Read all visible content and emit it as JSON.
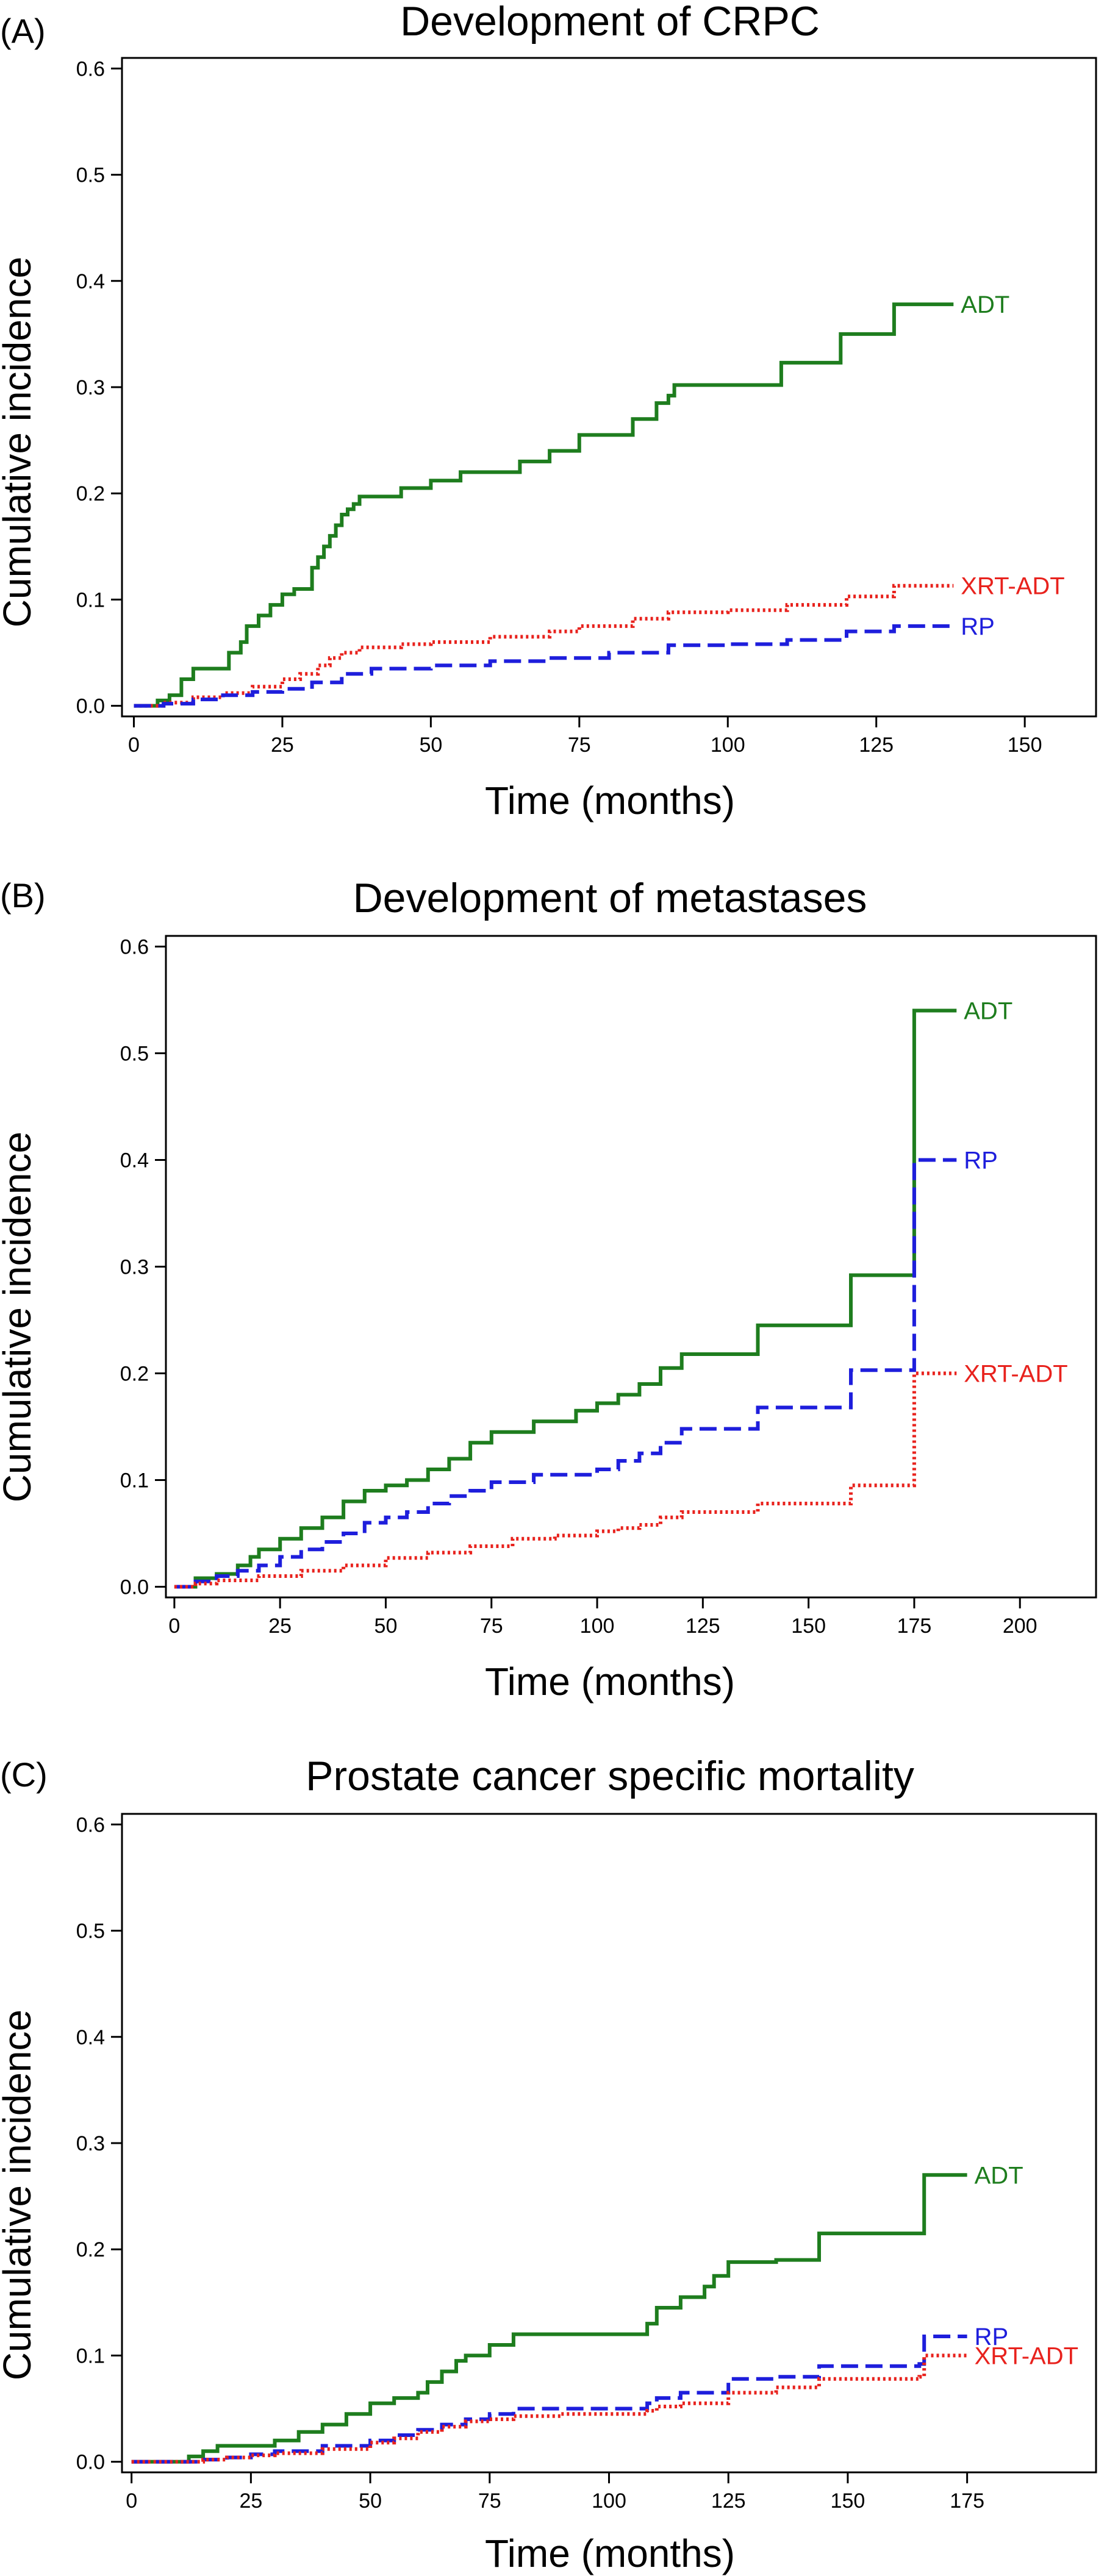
{
  "chart_data": [
    {
      "type": "line",
      "panel": "(A)",
      "title": "Development of CRPC",
      "xlabel": "Time (months)",
      "ylabel": "Cumulative incidence",
      "xlim": [
        -2,
        162
      ],
      "ylim": [
        -0.01,
        0.61
      ],
      "xticks": [
        0,
        25,
        50,
        75,
        100,
        125,
        150
      ],
      "yticks": [
        0.0,
        0.1,
        0.2,
        0.3,
        0.4,
        0.5,
        0.6
      ],
      "grid": false,
      "legend": "inline labels at line ends",
      "series": [
        {
          "name": "ADT",
          "color": "#1e7d1e",
          "linestyle": "solid",
          "label_y": 0.378,
          "x": [
            0,
            4,
            6,
            8,
            10,
            12,
            14,
            16,
            18,
            19,
            21,
            23,
            25,
            27,
            30,
            31,
            32,
            33,
            34,
            35,
            36,
            37,
            38,
            45,
            50,
            55,
            60,
            65,
            70,
            75,
            84,
            88,
            90,
            91,
            109,
            110,
            119,
            120,
            128,
            138
          ],
          "y": [
            0,
            0.005,
            0.01,
            0.025,
            0.035,
            0.035,
            0.035,
            0.05,
            0.06,
            0.075,
            0.085,
            0.095,
            0.105,
            0.11,
            0.13,
            0.14,
            0.15,
            0.16,
            0.17,
            0.18,
            0.185,
            0.19,
            0.197,
            0.205,
            0.212,
            0.22,
            0.22,
            0.23,
            0.24,
            0.255,
            0.27,
            0.285,
            0.292,
            0.302,
            0.323,
            0.323,
            0.35,
            0.35,
            0.378,
            0.378
          ]
        },
        {
          "name": "XRT-ADT",
          "color": "#e8221d",
          "linestyle": "dotted",
          "label_y": 0.113,
          "x": [
            0,
            5,
            10,
            15,
            20,
            25,
            28,
            31,
            33,
            35,
            38,
            45,
            50,
            60,
            70,
            75,
            84,
            90,
            100,
            110,
            120,
            128,
            138
          ],
          "y": [
            0,
            0.003,
            0.008,
            0.012,
            0.018,
            0.025,
            0.03,
            0.038,
            0.045,
            0.05,
            0.055,
            0.058,
            0.06,
            0.065,
            0.07,
            0.075,
            0.082,
            0.088,
            0.09,
            0.095,
            0.103,
            0.113,
            0.113
          ]
        },
        {
          "name": "RP",
          "color": "#1e1edc",
          "linestyle": "dashed",
          "label_y": 0.075,
          "x": [
            0,
            5,
            10,
            15,
            20,
            25,
            30,
            35,
            40,
            50,
            60,
            70,
            80,
            90,
            100,
            110,
            120,
            128,
            138
          ],
          "y": [
            0,
            0.002,
            0.006,
            0.01,
            0.013,
            0.016,
            0.022,
            0.03,
            0.035,
            0.038,
            0.042,
            0.045,
            0.05,
            0.057,
            0.058,
            0.062,
            0.07,
            0.075,
            0.075
          ]
        }
      ]
    },
    {
      "type": "line",
      "panel": "(B)",
      "title": "Development of metastases",
      "xlabel": "Time (months)",
      "ylabel": "Cumulative incidence",
      "xlim": [
        -2,
        218
      ],
      "ylim": [
        -0.01,
        0.61
      ],
      "xticks": [
        0,
        25,
        50,
        75,
        100,
        125,
        150,
        175,
        200
      ],
      "yticks": [
        0.0,
        0.1,
        0.2,
        0.3,
        0.4,
        0.5,
        0.6
      ],
      "grid": false,
      "legend": "inline labels at line ends",
      "series": [
        {
          "name": "ADT",
          "color": "#1e7d1e",
          "linestyle": "solid",
          "label_y": 0.54,
          "x": [
            0,
            5,
            10,
            15,
            18,
            20,
            25,
            30,
            35,
            40,
            45,
            50,
            55,
            60,
            65,
            70,
            75,
            85,
            95,
            100,
            105,
            110,
            115,
            120,
            138,
            160,
            174,
            175,
            185
          ],
          "y": [
            0,
            0.008,
            0.012,
            0.02,
            0.028,
            0.035,
            0.045,
            0.055,
            0.065,
            0.08,
            0.09,
            0.095,
            0.1,
            0.11,
            0.12,
            0.135,
            0.145,
            0.155,
            0.165,
            0.172,
            0.18,
            0.19,
            0.205,
            0.218,
            0.245,
            0.292,
            0.292,
            0.54,
            0.54
          ]
        },
        {
          "name": "RP",
          "color": "#1e1edc",
          "linestyle": "dashed",
          "label_y": 0.4,
          "x": [
            0,
            5,
            10,
            15,
            20,
            25,
            30,
            35,
            40,
            45,
            50,
            55,
            60,
            65,
            70,
            75,
            85,
            100,
            105,
            110,
            115,
            120,
            138,
            160,
            174,
            175,
            185
          ],
          "y": [
            0,
            0.005,
            0.01,
            0.015,
            0.02,
            0.028,
            0.035,
            0.042,
            0.05,
            0.06,
            0.065,
            0.07,
            0.078,
            0.085,
            0.09,
            0.098,
            0.105,
            0.11,
            0.118,
            0.125,
            0.135,
            0.148,
            0.168,
            0.203,
            0.203,
            0.4,
            0.4
          ]
        },
        {
          "name": "XRT-ADT",
          "color": "#e8221d",
          "linestyle": "dotted",
          "label_y": 0.2,
          "x": [
            0,
            5,
            10,
            20,
            30,
            40,
            50,
            60,
            70,
            80,
            90,
            100,
            105,
            110,
            115,
            120,
            138,
            160,
            174,
            175,
            185
          ],
          "y": [
            0,
            0.003,
            0.006,
            0.01,
            0.015,
            0.02,
            0.027,
            0.032,
            0.038,
            0.045,
            0.048,
            0.052,
            0.055,
            0.058,
            0.065,
            0.07,
            0.078,
            0.095,
            0.095,
            0.2,
            0.2
          ]
        }
      ]
    },
    {
      "type": "line",
      "panel": "(C)",
      "title": "Prostate cancer specific mortality",
      "xlabel": "Time (months)",
      "ylabel": "Cumulative incidence",
      "xlim": [
        -2,
        202
      ],
      "ylim": [
        -0.01,
        0.61
      ],
      "xticks": [
        0,
        25,
        50,
        75,
        100,
        125,
        150,
        175
      ],
      "yticks": [
        0.0,
        0.1,
        0.2,
        0.3,
        0.4,
        0.5,
        0.6
      ],
      "grid": false,
      "legend": "inline labels at line ends",
      "series": [
        {
          "name": "ADT",
          "color": "#1e7d1e",
          "linestyle": "solid",
          "label_y": 0.27,
          "x": [
            0,
            12,
            15,
            18,
            25,
            30,
            35,
            40,
            45,
            50,
            55,
            60,
            62,
            65,
            68,
            70,
            75,
            80,
            90,
            100,
            108,
            110,
            115,
            120,
            122,
            125,
            135,
            144,
            165,
            166,
            175
          ],
          "y": [
            0,
            0.005,
            0.01,
            0.015,
            0.015,
            0.02,
            0.028,
            0.035,
            0.045,
            0.055,
            0.06,
            0.065,
            0.075,
            0.085,
            0.095,
            0.1,
            0.11,
            0.12,
            0.12,
            0.12,
            0.13,
            0.145,
            0.155,
            0.165,
            0.175,
            0.188,
            0.19,
            0.215,
            0.215,
            0.27,
            0.27
          ]
        },
        {
          "name": "RP",
          "color": "#1e1edc",
          "linestyle": "dashed",
          "label_y": 0.118,
          "x": [
            0,
            15,
            20,
            25,
            30,
            40,
            50,
            55,
            60,
            65,
            70,
            75,
            80,
            90,
            100,
            108,
            110,
            115,
            125,
            135,
            144,
            165,
            166,
            175
          ],
          "y": [
            0,
            0.002,
            0.004,
            0.007,
            0.01,
            0.015,
            0.02,
            0.025,
            0.03,
            0.035,
            0.04,
            0.045,
            0.05,
            0.05,
            0.05,
            0.055,
            0.06,
            0.065,
            0.078,
            0.08,
            0.09,
            0.092,
            0.118,
            0.118
          ]
        },
        {
          "name": "XRT-ADT",
          "color": "#e8221d",
          "linestyle": "dotted",
          "label_y": 0.1,
          "x": [
            0,
            15,
            20,
            25,
            30,
            40,
            50,
            55,
            60,
            65,
            70,
            75,
            80,
            90,
            100,
            108,
            110,
            115,
            125,
            135,
            144,
            165,
            166,
            175
          ],
          "y": [
            0,
            0.002,
            0.004,
            0.006,
            0.008,
            0.012,
            0.018,
            0.022,
            0.028,
            0.033,
            0.038,
            0.04,
            0.043,
            0.045,
            0.045,
            0.048,
            0.052,
            0.055,
            0.065,
            0.07,
            0.078,
            0.08,
            0.1,
            0.1
          ]
        }
      ]
    }
  ]
}
